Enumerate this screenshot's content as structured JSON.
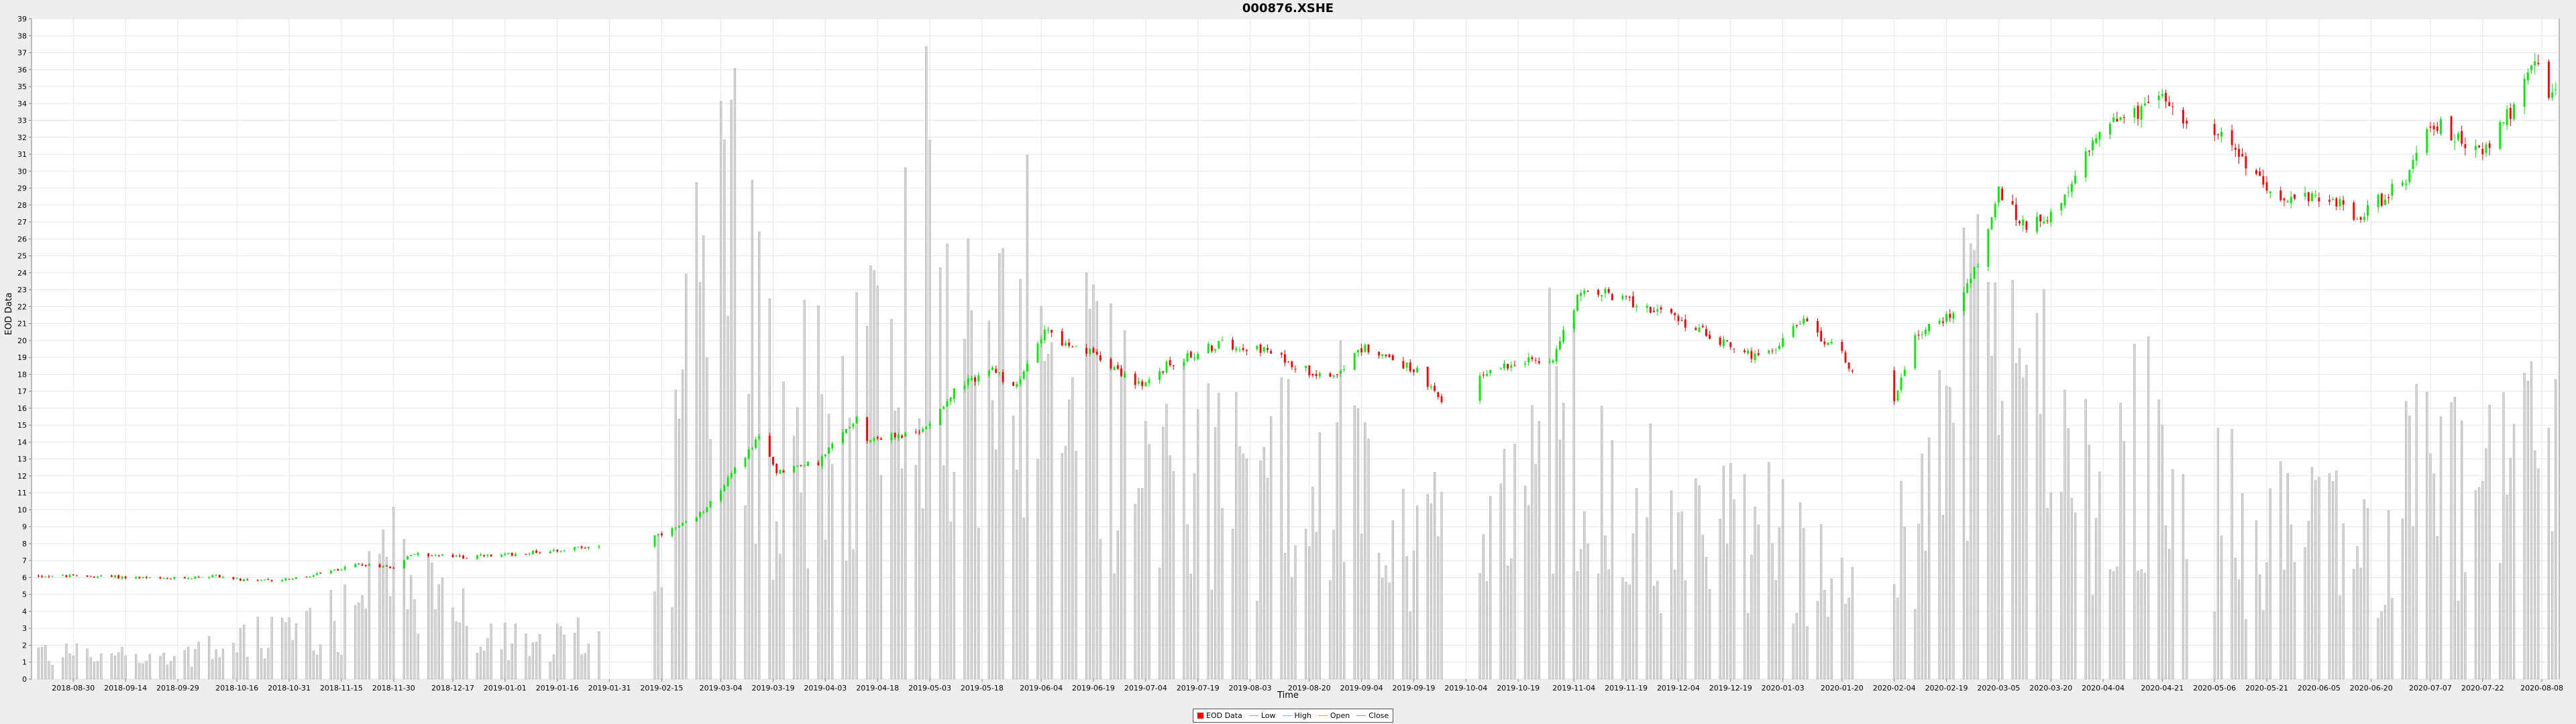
{
  "chart_data": {
    "type": "candlestick",
    "title": "000876.XSHE",
    "xlabel": "Time",
    "ylabel": "EOD Data",
    "ylim": [
      0,
      39
    ],
    "yticks": [
      0,
      1,
      2,
      3,
      4,
      5,
      6,
      7,
      8,
      9,
      10,
      11,
      12,
      13,
      14,
      15,
      16,
      17,
      18,
      19,
      20,
      21,
      22,
      23,
      24,
      25,
      26,
      27,
      28,
      29,
      30,
      31,
      32,
      33,
      34,
      35,
      36,
      37,
      38,
      39
    ],
    "xlim": [
      "2018-08-18",
      "2020-08-13"
    ],
    "xticks": [
      "2018-08-30",
      "2018-09-14",
      "2018-09-29",
      "2018-10-16",
      "2018-10-31",
      "2018-11-15",
      "2018-11-30",
      "2018-12-17",
      "2019-01-01",
      "2019-01-16",
      "2019-01-31",
      "2019-02-15",
      "2019-03-04",
      "2019-03-19",
      "2019-04-03",
      "2019-04-18",
      "2019-05-03",
      "2019-05-18",
      "2019-06-04",
      "2019-06-19",
      "2019-07-04",
      "2019-07-19",
      "2019-08-03",
      "2019-08-20",
      "2019-09-04",
      "2019-09-19",
      "2019-10-04",
      "2019-10-19",
      "2019-11-04",
      "2019-11-19",
      "2019-12-04",
      "2019-12-19",
      "2020-01-03",
      "2020-01-20",
      "2020-02-04",
      "2020-02-19",
      "2020-03-05",
      "2020-03-20",
      "2020-04-04",
      "2020-04-21",
      "2020-05-06",
      "2020-05-21",
      "2020-06-05",
      "2020-06-20",
      "2020-07-07",
      "2020-07-22",
      "2020-08-08"
    ],
    "grid": true,
    "legend_position": "bottom",
    "legend": [
      "EOD Data",
      "Low",
      "High",
      "Open",
      "Close"
    ],
    "up_color": "#00ee00",
    "down_color": "#ff0000",
    "volume_color": "#c8c8c8",
    "anchors": [
      [
        "2018-08-20",
        6.1
      ],
      [
        "2018-09-10",
        6.05
      ],
      [
        "2018-09-25",
        5.9
      ],
      [
        "2018-10-10",
        6.1
      ],
      [
        "2018-10-20",
        5.75
      ],
      [
        "2018-11-05",
        6.0
      ],
      [
        "2018-11-20",
        6.8
      ],
      [
        "2018-12-01",
        6.6
      ],
      [
        "2018-12-05",
        7.4
      ],
      [
        "2018-12-20",
        7.2
      ],
      [
        "2019-01-05",
        7.4
      ],
      [
        "2019-01-20",
        7.7
      ],
      [
        "2019-02-01",
        8.0
      ],
      [
        "2019-02-15",
        8.5
      ],
      [
        "2019-02-25",
        9.5
      ],
      [
        "2019-03-05",
        11.5
      ],
      [
        "2019-03-12",
        13.5
      ],
      [
        "2019-03-15",
        14.2
      ],
      [
        "2019-03-20",
        12.3
      ],
      [
        "2019-04-01",
        12.8
      ],
      [
        "2019-04-12",
        15.5
      ],
      [
        "2019-04-15",
        14.2
      ],
      [
        "2019-04-30",
        14.5
      ],
      [
        "2019-05-10",
        17.0
      ],
      [
        "2019-05-20",
        18.3
      ],
      [
        "2019-05-28",
        17.2
      ],
      [
        "2019-06-05",
        20.8
      ],
      [
        "2019-06-12",
        19.5
      ],
      [
        "2019-06-20",
        19.2
      ],
      [
        "2019-07-03",
        17.2
      ],
      [
        "2019-07-10",
        18.5
      ],
      [
        "2019-07-25",
        19.8
      ],
      [
        "2019-08-05",
        19.6
      ],
      [
        "2019-08-20",
        18.2
      ],
      [
        "2019-08-27",
        18.0
      ],
      [
        "2019-09-05",
        19.6
      ],
      [
        "2019-09-20",
        18.2
      ],
      [
        "2019-09-27",
        16.3
      ],
      [
        "2019-10-08",
        18.0
      ],
      [
        "2019-10-20",
        18.9
      ],
      [
        "2019-10-28",
        18.6
      ],
      [
        "2019-11-05",
        22.6
      ],
      [
        "2019-11-12",
        22.8
      ],
      [
        "2019-11-25",
        22.0
      ],
      [
        "2019-12-08",
        20.8
      ],
      [
        "2019-12-20",
        19.6
      ],
      [
        "2019-12-28",
        18.8
      ],
      [
        "2020-01-08",
        21.2
      ],
      [
        "2020-01-20",
        19.2
      ],
      [
        "2020-01-24",
        17.9
      ],
      [
        "2020-02-04",
        16.5
      ],
      [
        "2020-02-10",
        20.3
      ],
      [
        "2020-02-20",
        21.5
      ],
      [
        "2020-02-28",
        24.5
      ],
      [
        "2020-03-05",
        28.8
      ],
      [
        "2020-03-12",
        26.8
      ],
      [
        "2020-03-23",
        27.8
      ],
      [
        "2020-04-04",
        33.0
      ],
      [
        "2020-04-15",
        33.5
      ],
      [
        "2020-04-22",
        34.5
      ],
      [
        "2020-04-29",
        32.8
      ],
      [
        "2020-05-08",
        32.0
      ],
      [
        "2020-05-19",
        29.5
      ],
      [
        "2020-05-28",
        28.2
      ],
      [
        "2020-06-08",
        28.6
      ],
      [
        "2020-06-15",
        27.2
      ],
      [
        "2020-06-24",
        28.5
      ],
      [
        "2020-07-01",
        29.8
      ],
      [
        "2020-07-07",
        33.0
      ],
      [
        "2020-07-15",
        32.0
      ],
      [
        "2020-07-22",
        31.0
      ],
      [
        "2020-07-30",
        33.5
      ],
      [
        "2020-08-05",
        36.5
      ],
      [
        "2020-08-11",
        34.5
      ]
    ],
    "volume_peaks": [
      [
        "2018-08-20",
        2.5
      ],
      [
        "2018-10-01",
        2.0
      ],
      [
        "2018-11-20",
        6.0
      ],
      [
        "2018-11-30",
        11.5
      ],
      [
        "2018-12-25",
        4.0
      ],
      [
        "2019-01-31",
        3.5
      ],
      [
        "2019-02-15",
        9.0
      ],
      [
        "2019-02-22",
        26.0
      ],
      [
        "2019-03-04",
        38.5
      ],
      [
        "2019-03-08",
        37.0
      ],
      [
        "2019-03-20",
        22.0
      ],
      [
        "2019-04-05",
        25.0
      ],
      [
        "2019-04-20",
        26.5
      ],
      [
        "2019-04-28",
        33.5
      ],
      [
        "2019-05-02",
        39.5
      ],
      [
        "2019-05-10",
        29.0
      ],
      [
        "2019-05-20",
        23.0
      ],
      [
        "2019-06-01",
        34.0
      ],
      [
        "2019-06-10",
        26.0
      ],
      [
        "2019-06-20",
        25.0
      ],
      [
        "2019-07-05",
        24.0
      ],
      [
        "2019-07-20",
        18.0
      ],
      [
        "2019-08-05",
        18.0
      ],
      [
        "2019-08-25",
        23.0
      ],
      [
        "2019-09-10",
        12.0
      ],
      [
        "2019-09-25",
        14.0
      ],
      [
        "2019-10-10",
        10.0
      ],
      [
        "2019-10-28",
        25.0
      ],
      [
        "2019-11-10",
        18.0
      ],
      [
        "2019-11-25",
        16.0
      ],
      [
        "2019-12-10",
        12.0
      ],
      [
        "2019-12-25",
        14.0
      ],
      [
        "2020-01-05",
        12.0
      ],
      [
        "2020-01-20",
        9.0
      ],
      [
        "2020-02-10",
        13.0
      ],
      [
        "2020-02-25",
        31.0
      ],
      [
        "2020-03-05",
        29.0
      ],
      [
        "2020-03-15",
        25.0
      ],
      [
        "2020-03-25",
        19.0
      ],
      [
        "2020-04-05",
        19.0
      ],
      [
        "2020-04-20",
        21.0
      ],
      [
        "2020-05-05",
        16.0
      ],
      [
        "2020-05-20",
        13.0
      ],
      [
        "2020-06-05",
        13.0
      ],
      [
        "2020-06-20",
        12.0
      ],
      [
        "2020-07-05",
        19.0
      ],
      [
        "2020-07-15",
        18.0
      ],
      [
        "2020-07-30",
        17.0
      ],
      [
        "2020-08-10",
        21.0
      ]
    ],
    "gaps": [
      [
        "2019-01-28",
        "2019-02-13"
      ],
      [
        "2019-09-28",
        "2019-10-08"
      ],
      [
        "2020-01-23",
        "2020-02-04"
      ],
      [
        "2020-04-28",
        "2020-05-06"
      ]
    ]
  }
}
